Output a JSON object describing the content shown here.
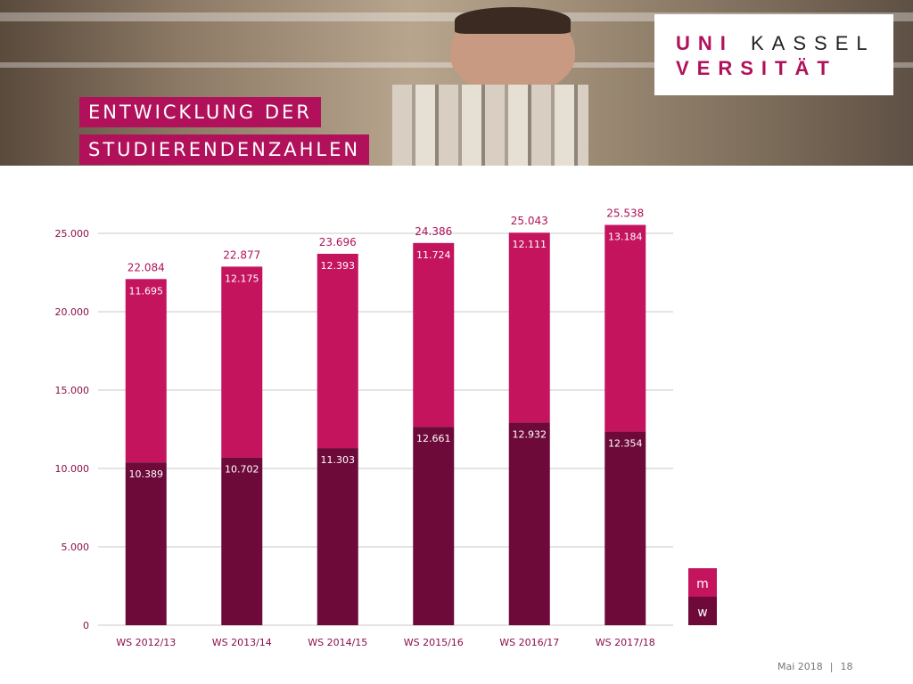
{
  "header": {
    "title_lines": [
      "ENTWICKLUNG DER",
      "STUDIERENDENZAHLEN"
    ],
    "logo": [
      "UNI",
      "KASSEL",
      "VERSITÄT"
    ]
  },
  "footer": {
    "date": "Mai 2018",
    "separator": "|",
    "page": "18"
  },
  "chart_data": {
    "type": "stacked-bar",
    "categories": [
      "WS 2012/13",
      "WS 2013/14",
      "WS 2014/15",
      "WS 2015/16",
      "WS 2016/17",
      "WS 2017/18"
    ],
    "series": [
      {
        "name": "w",
        "color": "#6d0a39",
        "values": [
          10389,
          10702,
          11303,
          12661,
          12932,
          12354
        ],
        "value_labels": [
          "10.389",
          "10.702",
          "11.303",
          "12.661",
          "12.932",
          "12.354"
        ]
      },
      {
        "name": "m",
        "color": "#c4145e",
        "values": [
          11695,
          12175,
          12393,
          11724,
          12111,
          13184
        ],
        "value_labels": [
          "11.695",
          "12.175",
          "12.393",
          "11.724",
          "12.111",
          "13.184"
        ]
      }
    ],
    "totals": {
      "values": [
        22084,
        22877,
        23696,
        24386,
        25043,
        25538
      ],
      "value_labels": [
        "22.084",
        "22.877",
        "23.696",
        "24.386",
        "25.043",
        "25.538"
      ]
    },
    "ylim": [
      0,
      25000
    ],
    "yticks": [
      0,
      {
        "value": 5000,
        "label": "5.000"
      },
      {
        "value": 10000,
        "label": "10.000"
      },
      {
        "value": 15000,
        "label": "15.000"
      },
      {
        "value": 20000,
        "label": "20.000"
      },
      {
        "value": 25000,
        "label": "25.000"
      }
    ],
    "grid": true,
    "legend": "right"
  }
}
